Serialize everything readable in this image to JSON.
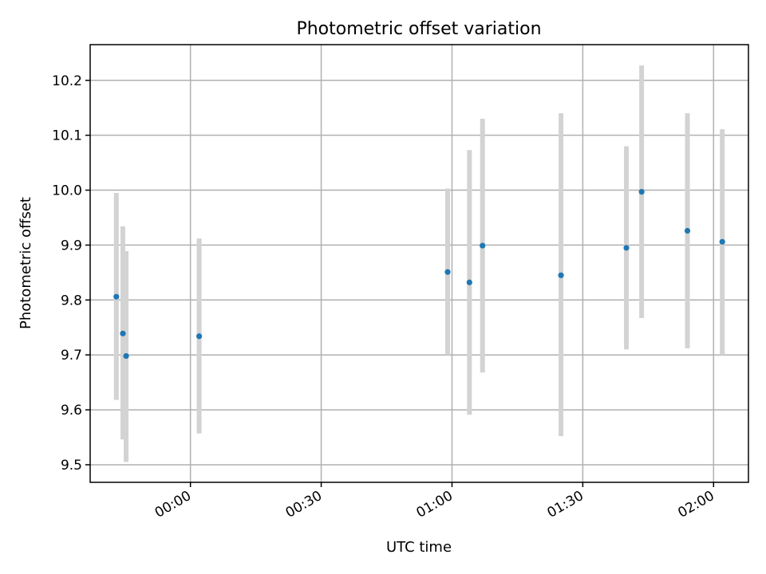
{
  "chart_data": {
    "type": "scatter",
    "title": "Photometric offset variation",
    "xlabel": "UTC time",
    "ylabel": "Photometric offset",
    "x_unit": "time (HH:MM, UTC)",
    "xlim": [
      "23:37",
      "02:08"
    ],
    "ylim": [
      9.468,
      10.265
    ],
    "x_ticks": [
      "00:00",
      "00:30",
      "01:00",
      "01:30",
      "02:00"
    ],
    "y_ticks": [
      9.5,
      9.6,
      9.7,
      9.8,
      9.9,
      10.0,
      10.1,
      10.2
    ],
    "y_tick_labels": [
      "9.5",
      "9.6",
      "9.7",
      "9.8",
      "9.9",
      "10.0",
      "10.1",
      "10.2"
    ],
    "grid": true,
    "series": [
      {
        "color": "#1f77b4",
        "error_color": "#d3d3d3",
        "points": [
          {
            "x": "23:43",
            "y": 9.806,
            "yerr_low": 9.618,
            "yerr_high": 9.995
          },
          {
            "x": "23:44:30",
            "y": 9.739,
            "yerr_low": 9.546,
            "yerr_high": 9.934
          },
          {
            "x": "23:45:15",
            "y": 9.698,
            "yerr_low": 9.505,
            "yerr_high": 9.889
          },
          {
            "x": "00:02",
            "y": 9.734,
            "yerr_low": 9.557,
            "yerr_high": 9.912
          },
          {
            "x": "00:59",
            "y": 9.851,
            "yerr_low": 9.7,
            "yerr_high": 10.003
          },
          {
            "x": "01:04",
            "y": 9.832,
            "yerr_low": 9.591,
            "yerr_high": 10.073
          },
          {
            "x": "01:07",
            "y": 9.899,
            "yerr_low": 9.668,
            "yerr_high": 10.13
          },
          {
            "x": "01:25",
            "y": 9.845,
            "yerr_low": 9.552,
            "yerr_high": 10.14
          },
          {
            "x": "01:40",
            "y": 9.895,
            "yerr_low": 9.71,
            "yerr_high": 10.08
          },
          {
            "x": "01:43:30",
            "y": 9.997,
            "yerr_low": 9.767,
            "yerr_high": 10.227
          },
          {
            "x": "01:54",
            "y": 9.926,
            "yerr_low": 9.712,
            "yerr_high": 10.14
          },
          {
            "x": "02:02",
            "y": 9.906,
            "yerr_low": 9.7,
            "yerr_high": 10.111
          }
        ]
      }
    ]
  }
}
